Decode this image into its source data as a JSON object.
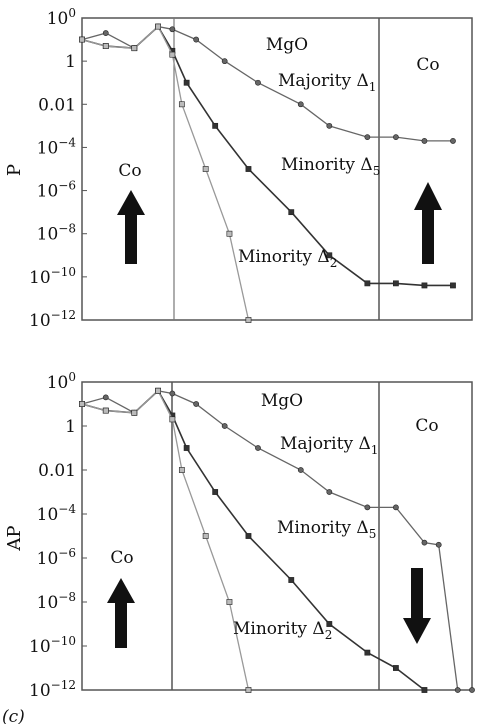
{
  "chart_data": [
    {
      "type": "line",
      "ylabel": "P",
      "yscale": "log",
      "ylim": [
        1e-12,
        100
      ],
      "yticks": [
        "100",
        "1",
        "0.01",
        "10−4",
        "10−6",
        "10−8",
        "10−10",
        "10−12"
      ],
      "regions": [
        "Co",
        "MgO",
        "Co"
      ],
      "annotations": {
        "left_region": "Co",
        "middle_region": "MgO",
        "right_region": "Co"
      },
      "magnetization": {
        "left": "up",
        "right": "up"
      },
      "series": [
        {
          "name": "Majority Δ1",
          "label_main": "Majority Δ",
          "label_sub": "1",
          "color": "#666666",
          "x": [
            0,
            0.25,
            0.55,
            0.8,
            0.95,
            1.2,
            1.5,
            1.85,
            2.3,
            2.6,
            3.0,
            3.3,
            3.6,
            3.9
          ],
          "y": [
            10,
            20,
            4,
            40,
            30,
            10,
            1,
            0.1,
            0.01,
            0.001,
            0.0003,
            0.0003,
            0.0002,
            0.0002
          ]
        },
        {
          "name": "Minority Δ5",
          "label_main": "Minority Δ",
          "label_sub": "5",
          "color": "#333333",
          "x": [
            0,
            0.25,
            0.55,
            0.8,
            0.95,
            1.1,
            1.4,
            1.75,
            2.2,
            2.6,
            3.0,
            3.3,
            3.6,
            3.9
          ],
          "y": [
            10,
            5,
            4,
            40,
            3,
            0.1,
            0.001,
            1e-05,
            1e-07,
            1e-09,
            5e-11,
            5e-11,
            4e-11,
            4e-11
          ]
        },
        {
          "name": "Minority Δ2",
          "label_main": "Minority Δ",
          "label_sub": "2",
          "color": "#999999",
          "x": [
            0,
            0.25,
            0.55,
            0.8,
            0.95,
            1.05,
            1.3,
            1.55,
            1.75
          ],
          "y": [
            10,
            5,
            4,
            40,
            2,
            0.01,
            1e-05,
            1e-08,
            1e-12
          ]
        }
      ]
    },
    {
      "type": "line",
      "ylabel": "AP",
      "yscale": "log",
      "ylim": [
        1e-12,
        100
      ],
      "yticks": [
        "100",
        "1",
        "0.01",
        "10−4",
        "10−6",
        "10−8",
        "10−10",
        "10−12"
      ],
      "regions": [
        "Co",
        "MgO",
        "Co"
      ],
      "annotations": {
        "left_region": "Co",
        "middle_region": "MgO",
        "right_region": "Co",
        "panel_tag": "(c)"
      },
      "magnetization": {
        "left": "up",
        "right": "down"
      },
      "series": [
        {
          "name": "Majority Δ1",
          "label_main": "Majority Δ",
          "label_sub": "1",
          "color": "#666666",
          "x": [
            0,
            0.25,
            0.55,
            0.8,
            0.95,
            1.2,
            1.5,
            1.85,
            2.3,
            2.6,
            3.0,
            3.3,
            3.6,
            3.75,
            3.95,
            4.1
          ],
          "y": [
            10,
            20,
            4,
            40,
            30,
            10,
            1,
            0.1,
            0.01,
            0.001,
            0.0002,
            0.0002,
            5e-06,
            4e-06,
            1e-12,
            1e-12
          ]
        },
        {
          "name": "Minority Δ5",
          "label_main": "Minority Δ",
          "label_sub": "5",
          "color": "#333333",
          "x": [
            0,
            0.25,
            0.55,
            0.8,
            0.95,
            1.1,
            1.4,
            1.75,
            2.2,
            2.6,
            3.0,
            3.3,
            3.6
          ],
          "y": [
            10,
            5,
            4,
            40,
            3,
            0.1,
            0.001,
            1e-05,
            1e-07,
            1e-09,
            5e-11,
            1e-11,
            1e-12
          ]
        },
        {
          "name": "Minority Δ2",
          "label_main": "Minority Δ",
          "label_sub": "2",
          "color": "#999999",
          "x": [
            0,
            0.25,
            0.55,
            0.8,
            0.95,
            1.05,
            1.3,
            1.55,
            1.75
          ],
          "y": [
            10,
            5,
            4,
            40,
            2,
            0.01,
            1e-05,
            1e-08,
            1e-12
          ]
        }
      ]
    }
  ]
}
